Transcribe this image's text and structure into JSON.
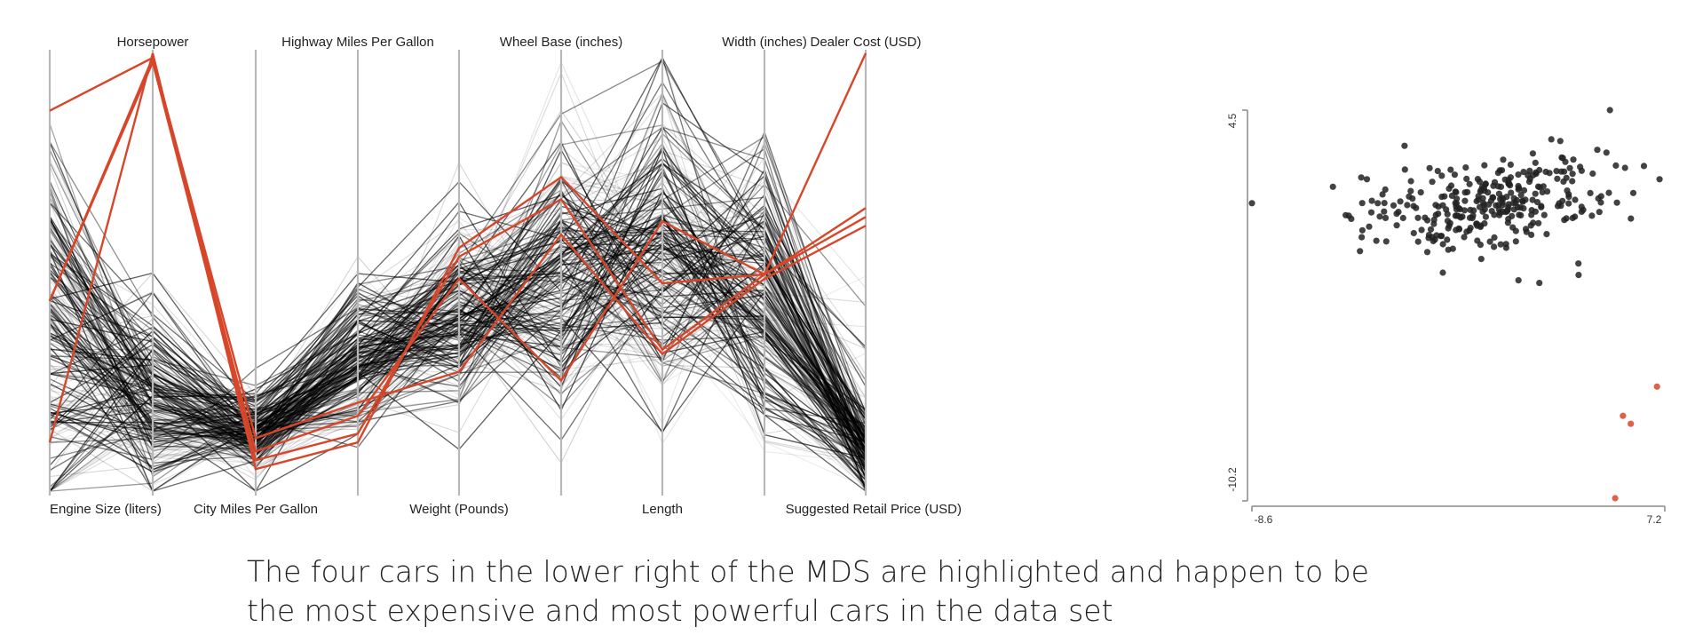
{
  "chart_data": [
    {
      "type": "parallel-coordinates",
      "axes_top": [
        "",
        "Horsepower",
        "",
        "Highway Miles Per Gallon",
        "",
        "Wheel Base (inches)",
        "",
        "Width (inches)",
        "Dealer Cost (USD)"
      ],
      "axes_bottom": [
        "Engine Size (liters)",
        "",
        "City Miles Per Gallon",
        "",
        "Weight (Pounds)",
        "",
        "Length",
        "",
        "Suggested Retail Price (USD)"
      ],
      "background_line_count": 220,
      "highlighted_lines": [
        [
          0.88,
          0.0,
          0.94,
          0.88,
          0.44,
          0.28,
          0.52,
          0.5,
          0.0
        ],
        [
          0.56,
          0.02,
          0.92,
          0.86,
          0.46,
          0.33,
          0.67,
          0.5,
          0.37
        ],
        [
          0.13,
          0.01,
          0.9,
          0.82,
          0.51,
          0.74,
          0.38,
          0.5,
          0.35
        ],
        [
          0.56,
          0.01,
          0.87,
          0.79,
          0.72,
          0.41,
          0.68,
          0.51,
          0.39
        ]
      ],
      "line_colors": {
        "background": "#000000",
        "highlight": "#d8462a",
        "axis": "#b8b8b8"
      }
    },
    {
      "type": "scatter",
      "x_tick_labels": [
        "-8.6",
        "7.2"
      ],
      "y_tick_labels": [
        "4.5",
        "-10.2"
      ],
      "xlim": [
        -8.6,
        7.2
      ],
      "ylim": [
        -10.2,
        4.5
      ],
      "highlighted_points": [
        {
          "x": 5.6,
          "y": -7.0
        },
        {
          "x": 5.9,
          "y": -7.3
        },
        {
          "x": 6.9,
          "y": -5.9
        },
        {
          "x": 5.3,
          "y": -10.1
        }
      ],
      "point_colors": {
        "normal": "#222222",
        "highlight": "#d8462a"
      }
    }
  ],
  "caption": {
    "line1": "The four cars in the lower right of the MDS are highlighted and happen to be",
    "line2": "the most expensive and most powerful cars in the data set"
  }
}
